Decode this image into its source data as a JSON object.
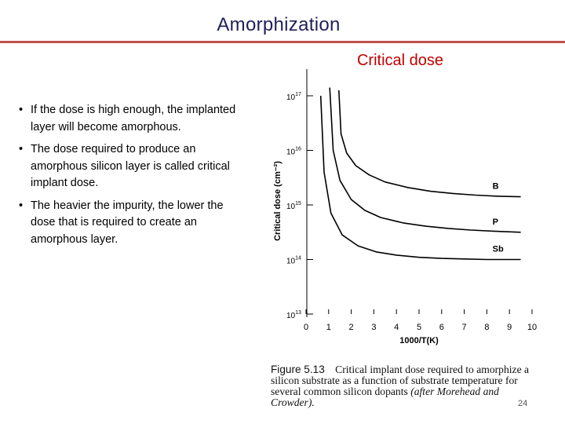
{
  "slide": {
    "title": "Amorphization",
    "subtitle": "Critical dose",
    "bullets": [
      "If the dose is high enough, the implanted layer will become amorphous.",
      "The dose required to produce an amorphous silicon layer is called critical implant dose.",
      "The heavier the impurity, the lower the dose that is required to create an amorphous layer."
    ],
    "bullet_glyph": "•",
    "caption": {
      "figure": "Figure 5.13",
      "text": "Critical implant dose required to amorphize a silicon substrate as a function of substrate temperature for several common silicon dopants",
      "citation": "(after Morehead and Crowder)."
    },
    "page_number": "24",
    "colors": {
      "title": "#1f1f5c",
      "rule": "#c0504d",
      "subtitle": "#c00000"
    }
  },
  "chart_data": {
    "type": "line",
    "xlabel": "1000/T(K)",
    "ylabel": "Critical dose (cm⁻²)",
    "x_ticks": [
      "0",
      "1",
      "2",
      "3",
      "4",
      "5",
      "6",
      "7",
      "8",
      "9",
      "10"
    ],
    "y_ticks": [
      {
        "base": "10",
        "exp": "13"
      },
      {
        "base": "10",
        "exp": "14"
      },
      {
        "base": "10",
        "exp": "15"
      },
      {
        "base": "10",
        "exp": "16"
      },
      {
        "base": "10",
        "exp": "17"
      }
    ],
    "xlim": [
      0,
      10
    ],
    "ylim_log10": [
      13,
      17
    ],
    "y_scale": "log",
    "series": [
      {
        "name": "B",
        "x": [
          1.45,
          1.55,
          1.8,
          2.2,
          2.8,
          3.5,
          4.5,
          5.5,
          6.5,
          7.5,
          8.5,
          9.5
        ],
        "log_y": [
          17.1,
          16.3,
          15.95,
          15.72,
          15.55,
          15.42,
          15.32,
          15.25,
          15.21,
          15.18,
          15.16,
          15.15
        ]
      },
      {
        "name": "P",
        "x": [
          1.05,
          1.2,
          1.5,
          2.0,
          2.6,
          3.3,
          4.3,
          5.3,
          6.3,
          7.3,
          8.3,
          9.5
        ],
        "log_y": [
          17.15,
          16.0,
          15.45,
          15.1,
          14.9,
          14.77,
          14.67,
          14.61,
          14.57,
          14.54,
          14.52,
          14.5
        ]
      },
      {
        "name": "Sb",
        "x": [
          0.65,
          0.8,
          1.1,
          1.6,
          2.3,
          3.1,
          4.0,
          5.0,
          6.0,
          7.0,
          8.0,
          9.5
        ],
        "log_y": [
          17.0,
          15.6,
          14.85,
          14.45,
          14.25,
          14.14,
          14.08,
          14.04,
          14.02,
          14.01,
          14.0,
          14.0
        ]
      }
    ],
    "legend": "inline labels at right end of curves",
    "grid": false
  }
}
